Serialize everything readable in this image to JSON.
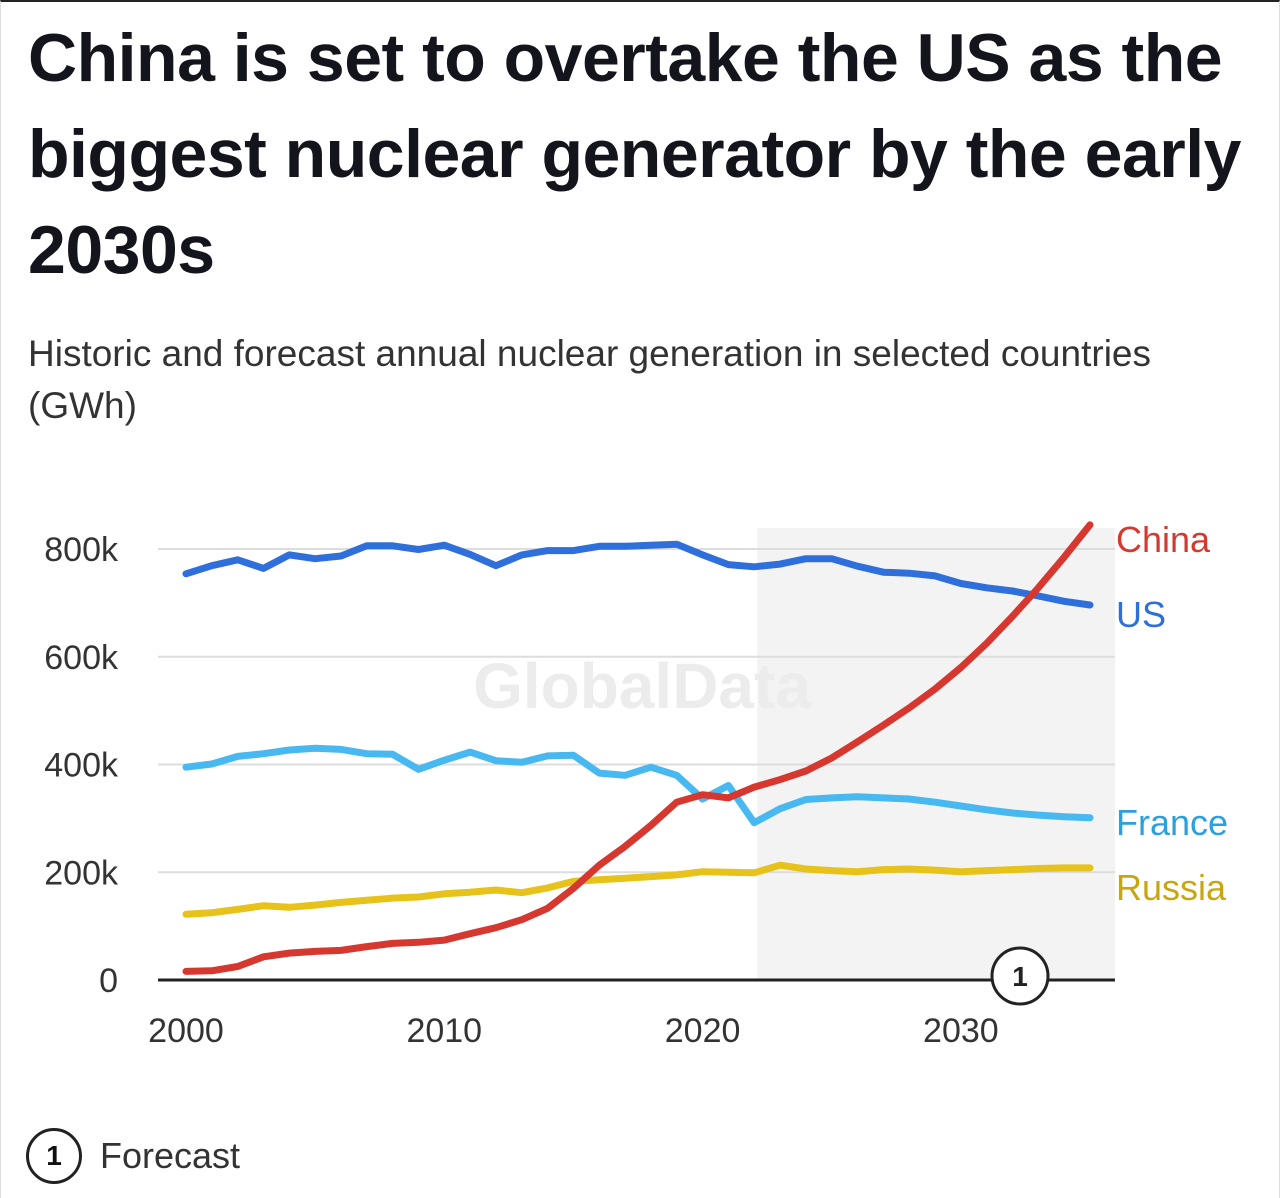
{
  "title": "China is set to overtake the US as the biggest nuclear generator by the early 2030s",
  "subtitle": "Historic and forecast annual nuclear generation in selected countries (GWh)",
  "watermark": "GlobalData",
  "forecast_marker": "1",
  "footnote": {
    "marker": "1",
    "label": "Forecast"
  },
  "colors": {
    "China": "#d6382f",
    "US": "#2f6fdc",
    "France": "#48b8f0",
    "Russia": "#e6c21a",
    "forecast_shade": "#f3f3f3"
  },
  "chart_data": {
    "type": "line",
    "title": "China is set to overtake the US as the biggest nuclear generator by the early 2030s",
    "subtitle": "Historic and forecast annual nuclear generation in selected countries (GWh)",
    "xlabel": "",
    "ylabel": "",
    "xlim": [
      2000,
      2035
    ],
    "ylim": [
      0,
      800000
    ],
    "xticks": [
      2000,
      2010,
      2020,
      2030
    ],
    "xtick_labels": [
      "2000",
      "2010",
      "2020",
      "2030"
    ],
    "yticks": [
      0,
      200000,
      400000,
      600000,
      800000
    ],
    "ytick_labels": [
      "0",
      "200k",
      "400k",
      "600k",
      "800k"
    ],
    "grid": "horizontal",
    "legend": "direct labels at line ends (right)",
    "forecast_start": 2022,
    "x": [
      2000,
      2001,
      2002,
      2003,
      2004,
      2005,
      2006,
      2007,
      2008,
      2009,
      2010,
      2011,
      2012,
      2013,
      2014,
      2015,
      2016,
      2017,
      2018,
      2019,
      2020,
      2021,
      2022,
      2023,
      2024,
      2025,
      2026,
      2027,
      2028,
      2029,
      2030,
      2031,
      2032,
      2033,
      2034,
      2035
    ],
    "series": [
      {
        "name": "China",
        "values": [
          16000,
          17000,
          25000,
          43000,
          50000,
          53000,
          55000,
          62000,
          68000,
          70000,
          74000,
          86000,
          97000,
          112000,
          133000,
          170000,
          213000,
          248000,
          287000,
          330000,
          344000,
          338000,
          358000,
          372000,
          388000,
          412000,
          442000,
          473000,
          505000,
          540000,
          580000,
          625000,
          675000,
          728000,
          785000,
          845000
        ]
      },
      {
        "name": "US",
        "values": [
          754000,
          769000,
          780000,
          764000,
          789000,
          782000,
          787000,
          806000,
          806000,
          799000,
          807000,
          790000,
          769000,
          789000,
          797000,
          797000,
          805000,
          805000,
          807000,
          809000,
          789000,
          771000,
          767000,
          772000,
          782000,
          782000,
          768000,
          757000,
          755000,
          750000,
          736000,
          728000,
          722000,
          713000,
          703000,
          696000
        ]
      },
      {
        "name": "France",
        "values": [
          395000,
          401000,
          415000,
          420000,
          427000,
          430000,
          428000,
          420000,
          419000,
          391000,
          408000,
          423000,
          407000,
          404000,
          416000,
          417000,
          384000,
          380000,
          395000,
          380000,
          336000,
          361000,
          292000,
          318000,
          335000,
          338000,
          340000,
          338000,
          336000,
          330000,
          323000,
          316000,
          310000,
          306000,
          303000,
          301000
        ]
      },
      {
        "name": "Russia",
        "values": [
          122000,
          125000,
          131000,
          138000,
          135000,
          139000,
          144000,
          148000,
          152000,
          154000,
          160000,
          163000,
          167000,
          162000,
          171000,
          183000,
          186000,
          189000,
          192000,
          195000,
          201000,
          200000,
          199000,
          213000,
          206000,
          203000,
          201000,
          205000,
          206000,
          204000,
          201000,
          203000,
          205000,
          207000,
          208000,
          208000
        ]
      }
    ]
  }
}
